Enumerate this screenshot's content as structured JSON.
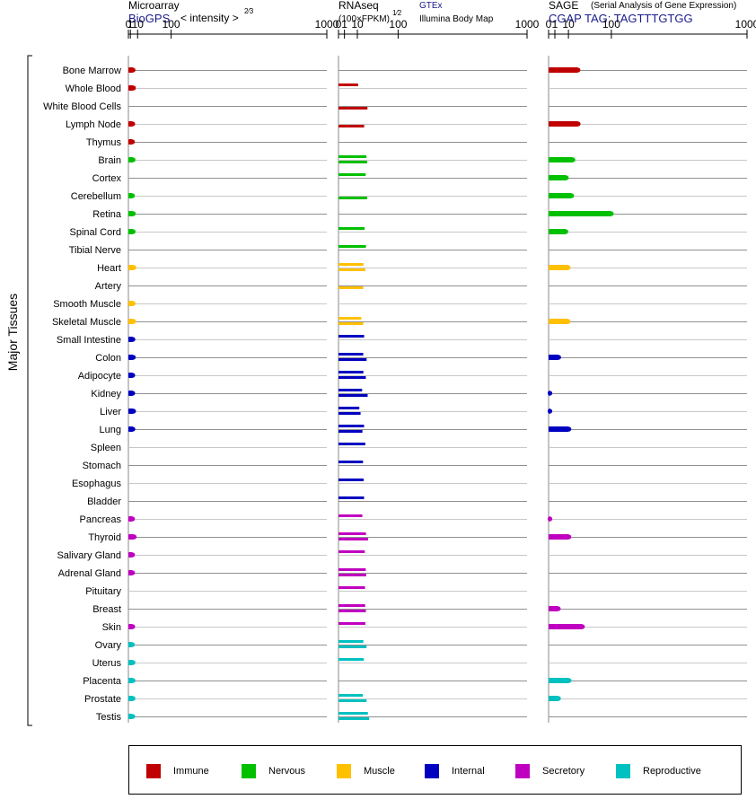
{
  "headers": {
    "microarray_title": "Microarray",
    "microarray_source": "BioGPS",
    "microarray_unit": "< intensity >",
    "microarray_exp": "2⁄3",
    "rnaseq_title": "RNAseq",
    "rnaseq_unit": "(100×FPKM)",
    "rnaseq_exp": "1⁄2",
    "rnaseq_source1": "GTEx",
    "rnaseq_source2": "Illumina Body Map",
    "sage_title": "SAGE",
    "sage_subtitle": "(Serial Analysis of Gene Expression)",
    "sage_tag": "CGAP  TAG: TAGTTTGTGG"
  },
  "y_axis_label": "Major Tissues",
  "legend": [
    {
      "label": "Immune",
      "color": "#c00000"
    },
    {
      "label": "Nervous",
      "color": "#00c000"
    },
    {
      "label": "Muscle",
      "color": "#ffc000"
    },
    {
      "label": "Internal",
      "color": "#0000c0"
    },
    {
      "label": "Secretory",
      "color": "#c000c0"
    },
    {
      "label": "Reproductive",
      "color": "#00c0c0"
    }
  ],
  "chart_data": {
    "type": "bar",
    "orientation": "horizontal",
    "x_ticks": [
      0,
      1,
      10,
      100,
      1000
    ],
    "x_scale": "power",
    "panels": [
      {
        "name": "Microarray",
        "exponent": 0.6667
      },
      {
        "name": "RNAseq",
        "exponent": 0.5
      },
      {
        "name": "SAGE",
        "exponent": 0.5
      }
    ],
    "categories": [
      "Bone Marrow",
      "Whole Blood",
      "White Blood Cells",
      "Lymph Node",
      "Thymus",
      "Brain",
      "Cortex",
      "Cerebellum",
      "Retina",
      "Spinal Cord",
      "Tibial Nerve",
      "Heart",
      "Artery",
      "Smooth Muscle",
      "Skeletal Muscle",
      "Small Intestine",
      "Colon",
      "Adipocyte",
      "Kidney",
      "Liver",
      "Lung",
      "Spleen",
      "Stomach",
      "Esophagus",
      "Bladder",
      "Pancreas",
      "Thyroid",
      "Salivary Gland",
      "Adrenal Gland",
      "Pituitary",
      "Breast",
      "Skin",
      "Ovary",
      "Uterus",
      "Placenta",
      "Prostate",
      "Testis"
    ],
    "groups": [
      "Immune",
      "Immune",
      "Immune",
      "Immune",
      "Immune",
      "Nervous",
      "Nervous",
      "Nervous",
      "Nervous",
      "Nervous",
      "Nervous",
      "Muscle",
      "Muscle",
      "Muscle",
      "Muscle",
      "Internal",
      "Internal",
      "Internal",
      "Internal",
      "Internal",
      "Internal",
      "Internal",
      "Internal",
      "Internal",
      "Internal",
      "Secretory",
      "Secretory",
      "Secretory",
      "Secretory",
      "Secretory",
      "Secretory",
      "Secretory",
      "Reproductive",
      "Reproductive",
      "Reproductive",
      "Reproductive",
      "Reproductive"
    ],
    "microarray": [
      3.7,
      4.2,
      null,
      3.3,
      3.0,
      3.7,
      null,
      3.0,
      4.0,
      3.8,
      null,
      4.7,
      null,
      3.8,
      4.3,
      3.5,
      4.0,
      3.3,
      3.3,
      4.3,
      3.5,
      null,
      null,
      null,
      null,
      3.1,
      5.1,
      3.1,
      3.1,
      null,
      null,
      3.3,
      2.9,
      3.6,
      3.6,
      3.6,
      3.3
    ],
    "rnaseq_gtex": [
      null,
      10.8,
      null,
      null,
      null,
      22.0,
      20.8,
      null,
      null,
      19.2,
      21.2,
      17.5,
      null,
      null,
      14.6,
      18.5,
      17.2,
      17.4,
      15.7,
      12.2,
      18.4,
      20.2,
      16.9,
      17.8,
      18.4,
      16.0,
      21.2,
      19.5,
      20.9,
      19.8,
      20.0,
      20.3,
      17.4,
      18.0,
      null,
      16.7,
      24.3
    ],
    "rnaseq_ibm": [
      null,
      null,
      23.6,
      18.5,
      null,
      23.0,
      null,
      23.1,
      null,
      null,
      null,
      20.3,
      17.2,
      null,
      17.3,
      null,
      22.2,
      21.0,
      23.9,
      13.7,
      16.1,
      null,
      null,
      null,
      null,
      null,
      24.6,
      null,
      21.5,
      null,
      21.1,
      null,
      22.1,
      null,
      null,
      22.2,
      26.5
    ],
    "sage": [
      22.0,
      null,
      null,
      22.3,
      null,
      15.1,
      8.0,
      13.6,
      100.0,
      7.6,
      null,
      9.8,
      null,
      null,
      9.7,
      null,
      2.6,
      null,
      0.006,
      0.006,
      10.5,
      null,
      null,
      null,
      null,
      0.004,
      10.5,
      null,
      null,
      null,
      2.4,
      29.2,
      null,
      null,
      10.7,
      2.5,
      null
    ]
  }
}
